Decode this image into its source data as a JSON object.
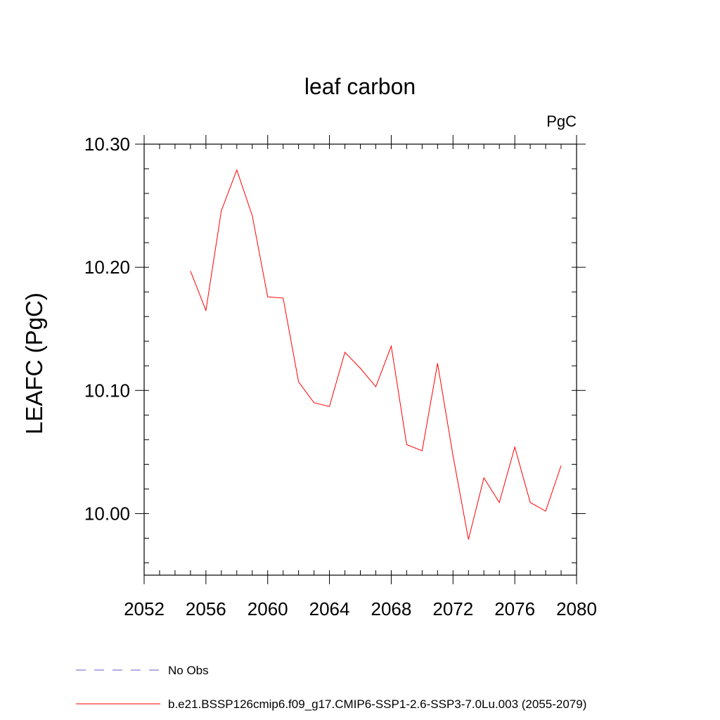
{
  "chart_data": {
    "type": "line",
    "title": "leaf carbon",
    "units": "PgC",
    "xlabel": "",
    "ylabel": "LEAFC  (PgC)",
    "xlim": [
      2052,
      2080
    ],
    "ylim": [
      9.95,
      10.3
    ],
    "x_ticks": [
      2052,
      2056,
      2060,
      2064,
      2068,
      2072,
      2076,
      2080
    ],
    "x_tick_labels": [
      "2052",
      "2056",
      "2060",
      "2064",
      "2068",
      "2072",
      "2076",
      "2080"
    ],
    "y_ticks": [
      10.0,
      10.1,
      10.2,
      10.3
    ],
    "y_tick_labels": [
      "10.00",
      "10.10",
      "10.20",
      "10.30"
    ],
    "x_minor_step": 1,
    "y_minor_step": 0.02,
    "grid": false,
    "legend_position": "bottom-left",
    "series": [
      {
        "name": "No Obs",
        "color": "#6a5acd",
        "dash": "dashed",
        "x": [],
        "values": []
      },
      {
        "name": "b.e21.BSSP126cmip6.f09_g17.CMIP6-SSP1-2.6-SSP3-7.0Lu.003 (2055-2079)",
        "color": "#ff0000",
        "dash": "solid",
        "x": [
          2055,
          2056,
          2057,
          2058,
          2059,
          2060,
          2061,
          2062,
          2063,
          2064,
          2065,
          2066,
          2067,
          2068,
          2069,
          2070,
          2071,
          2072,
          2073,
          2074,
          2075,
          2076,
          2077,
          2078,
          2079
        ],
        "values": [
          10.197,
          10.165,
          10.246,
          10.279,
          10.242,
          10.176,
          10.175,
          10.107,
          10.09,
          10.087,
          10.131,
          10.118,
          10.103,
          10.136,
          10.056,
          10.051,
          10.122,
          10.047,
          9.979,
          10.029,
          10.009,
          10.054,
          10.009,
          10.002,
          10.039
        ]
      }
    ]
  }
}
